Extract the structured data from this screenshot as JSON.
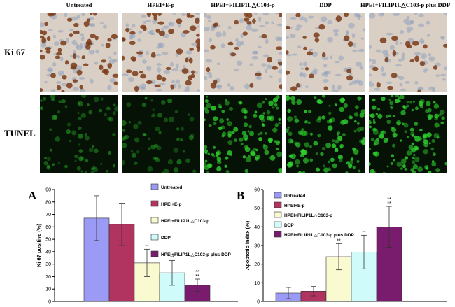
{
  "columns": [
    "Untreated",
    "HPEI+E-p",
    "HPEI+FILIP1L△C103-p",
    "DDP",
    "HPEI+FILIP1L△C103-p plus DDP"
  ],
  "rows": [
    "Ki 67",
    "TUNEL"
  ],
  "panel_letters": [
    "A",
    "B"
  ],
  "colors": {
    "series": [
      "#9b9bf5",
      "#b03360",
      "#fafad0",
      "#d0fbfb",
      "#7a1c6e"
    ],
    "ihc_bg": "#d9cfc4",
    "ihc_nuclei": "#7a3b17",
    "tunel_bg": "#061206",
    "tunel_dots": "#2fd42f"
  },
  "chart_data": [
    {
      "type": "bar",
      "panel": "A",
      "ylabel": "Ki 67 positive (%)",
      "ylim": [
        0,
        90
      ],
      "yticks": [
        0,
        10,
        20,
        30,
        40,
        50,
        60,
        70,
        80,
        90
      ],
      "series": [
        {
          "name": "Untreated",
          "value": 67,
          "error": 18,
          "sig": ""
        },
        {
          "name": "HPEI+E-p",
          "value": 62,
          "error": 17,
          "sig": ""
        },
        {
          "name": "HPEI+FILIP1L△C103-p",
          "value": 31,
          "error": 11,
          "sig": "**"
        },
        {
          "name": "DDP",
          "value": 23,
          "error": 10,
          "sig": "**"
        },
        {
          "name": "HPEI+FILIP1L△C103-p plus DDP",
          "value": 13,
          "error": 5,
          "sig": "**\n**"
        }
      ],
      "legend": "right"
    },
    {
      "type": "bar",
      "panel": "B",
      "ylabel": "Apoptotic index (%)",
      "ylim": [
        0,
        60
      ],
      "yticks": [
        0,
        10,
        20,
        30,
        40,
        50,
        60
      ],
      "series": [
        {
          "name": "Untreated",
          "value": 4.5,
          "error": 3,
          "sig": ""
        },
        {
          "name": "HPEI+E-p",
          "value": 5.5,
          "error": 2.5,
          "sig": ""
        },
        {
          "name": "HPEI+FILIP1L△C103-p",
          "value": 24,
          "error": 7,
          "sig": "**"
        },
        {
          "name": "DDP",
          "value": 26.5,
          "error": 9,
          "sig": "**"
        },
        {
          "name": "HPEI+FILIP1L△C103-p plus DDP",
          "value": 40,
          "error": 11,
          "sig": "**\n**"
        }
      ],
      "legend": "top-left"
    }
  ]
}
